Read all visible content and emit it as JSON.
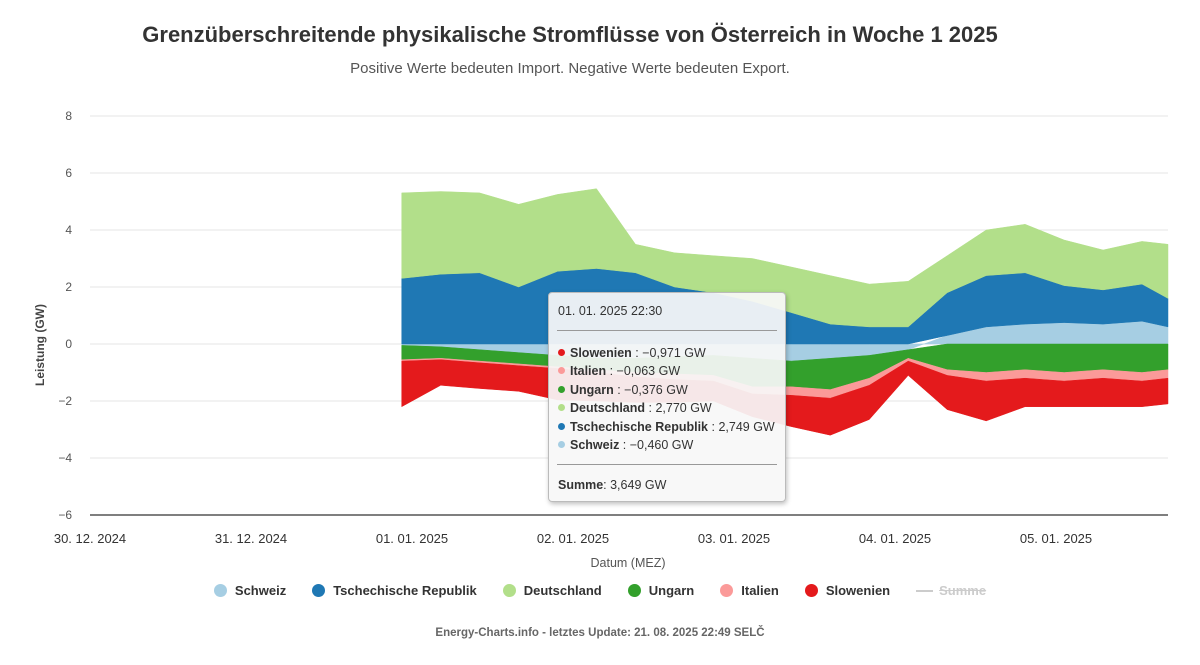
{
  "page": {
    "title": "Grenzüberschreitende physikalische Stromflüsse von Österreich in Woche 1 2025",
    "subtitle": "Positive Werte bedeuten Import. Negative Werte bedeuten Export.",
    "footer": "Energy-Charts.info - letztes Update: 21. 08. 2025 22:49 SELČ"
  },
  "tooltip": {
    "header": "01. 01. 2025 22:30",
    "rows": [
      {
        "name": "Slowenien",
        "value": "−0,971 GW",
        "color": "#e41a1c"
      },
      {
        "name": "Italien",
        "value": "−0,063 GW",
        "color": "#fb9a99"
      },
      {
        "name": "Ungarn",
        "value": "−0,376 GW",
        "color": "#33a02c"
      },
      {
        "name": "Deutschland",
        "value": "2,770 GW",
        "color": "#b2df8a"
      },
      {
        "name": "Tschechische Republik",
        "value": "2,749 GW",
        "color": "#1f78b4"
      },
      {
        "name": "Schweiz",
        "value": "−0,460 GW",
        "color": "#a6cee3"
      }
    ],
    "sum_label": "Summe",
    "sum_value": "3,649 GW"
  },
  "legend": [
    {
      "name": "Schweiz",
      "color": "#a6cee3",
      "type": "dot"
    },
    {
      "name": "Tschechische Republik",
      "color": "#1f78b4",
      "type": "dot"
    },
    {
      "name": "Deutschland",
      "color": "#b2df8a",
      "type": "dot"
    },
    {
      "name": "Ungarn",
      "color": "#33a02c",
      "type": "dot"
    },
    {
      "name": "Italien",
      "color": "#fb9a99",
      "type": "dot"
    },
    {
      "name": "Slowenien",
      "color": "#e41a1c",
      "type": "dot"
    },
    {
      "name": "Summe",
      "color": "#cccccc",
      "type": "line",
      "hidden": true
    }
  ],
  "chart_data": {
    "type": "area",
    "stacked": true,
    "title": "Grenzüberschreitende physikalische Stromflüsse von Österreich in Woche 1 2025",
    "subtitle": "Positive Werte bedeuten Import. Negative Werte bedeuten Export.",
    "xlabel": "Datum (MEZ)",
    "ylabel": "Leistung (GW)",
    "ylim": [
      -6,
      8
    ],
    "yticks": [
      8,
      6,
      4,
      2,
      0,
      -2,
      -4,
      -6
    ],
    "xlim": [
      "2024-12-30",
      "2025-01-05 22:00"
    ],
    "xtick_labels": [
      "30. 12. 2024",
      "31. 12. 2024",
      "01. 01. 2025",
      "02. 01. 2025",
      "03. 01. 2025",
      "04. 01. 2025",
      "05. 01. 2025"
    ],
    "grid": "horizontal",
    "legend_position": "bottom",
    "x": [
      "2025-01-01 00:00",
      "2025-01-01 06:00",
      "2025-01-01 12:00",
      "2025-01-01 18:00",
      "2025-01-02 00:00",
      "2025-01-02 06:00",
      "2025-01-02 12:00",
      "2025-01-02 18:00",
      "2025-01-03 00:00",
      "2025-01-03 06:00",
      "2025-01-03 12:00",
      "2025-01-03 18:00",
      "2025-01-04 00:00",
      "2025-01-04 06:00",
      "2025-01-04 12:00",
      "2025-01-04 18:00",
      "2025-01-05 00:00",
      "2025-01-05 06:00",
      "2025-01-05 12:00",
      "2025-01-05 18:00",
      "2025-01-05 22:00"
    ],
    "series": [
      {
        "name": "Schweiz",
        "color": "#a6cee3",
        "values": [
          -0.05,
          -0.1,
          -0.2,
          -0.3,
          -0.4,
          -0.5,
          -0.5,
          -0.45,
          -0.4,
          -0.5,
          -0.6,
          -0.5,
          -0.4,
          -0.2,
          0.3,
          0.6,
          0.7,
          0.75,
          0.7,
          0.8,
          0.6
        ]
      },
      {
        "name": "Tschechische Republik",
        "color": "#1f78b4",
        "values": [
          2.3,
          2.45,
          2.5,
          2.0,
          2.55,
          2.65,
          2.5,
          2.0,
          1.8,
          1.5,
          1.1,
          0.7,
          0.6,
          0.6,
          1.5,
          1.8,
          1.8,
          1.3,
          1.2,
          1.3,
          1.0
        ]
      },
      {
        "name": "Deutschland",
        "color": "#b2df8a",
        "values": [
          3.0,
          2.9,
          2.8,
          2.9,
          2.7,
          2.8,
          1.0,
          1.2,
          1.3,
          1.5,
          1.6,
          1.7,
          1.5,
          1.6,
          1.3,
          1.6,
          1.7,
          1.6,
          1.4,
          1.5,
          1.9
        ]
      },
      {
        "name": "Ungarn",
        "color": "#33a02c",
        "values": [
          -0.5,
          -0.4,
          -0.4,
          -0.4,
          -0.4,
          -0.4,
          -0.5,
          -0.6,
          -0.7,
          -1.0,
          -0.9,
          -1.1,
          -0.8,
          -0.3,
          -0.9,
          -1.0,
          -0.9,
          -1.0,
          -0.9,
          -1.0,
          -0.9
        ]
      },
      {
        "name": "Italien",
        "color": "#fb9a99",
        "values": [
          -0.05,
          -0.05,
          -0.06,
          -0.06,
          -0.06,
          -0.1,
          -0.15,
          -0.2,
          -0.2,
          -0.25,
          -0.3,
          -0.3,
          -0.25,
          -0.1,
          -0.2,
          -0.3,
          -0.3,
          -0.3,
          -0.3,
          -0.3,
          -0.3
        ]
      },
      {
        "name": "Slowenien",
        "color": "#e41a1c",
        "values": [
          -1.6,
          -0.9,
          -0.9,
          -0.9,
          -1.1,
          -1.0,
          -0.9,
          -0.8,
          -0.7,
          -0.8,
          -1.1,
          -1.3,
          -1.2,
          -0.5,
          -1.2,
          -1.4,
          -1.0,
          -0.9,
          -1.0,
          -0.9,
          -0.9
        ]
      }
    ]
  }
}
